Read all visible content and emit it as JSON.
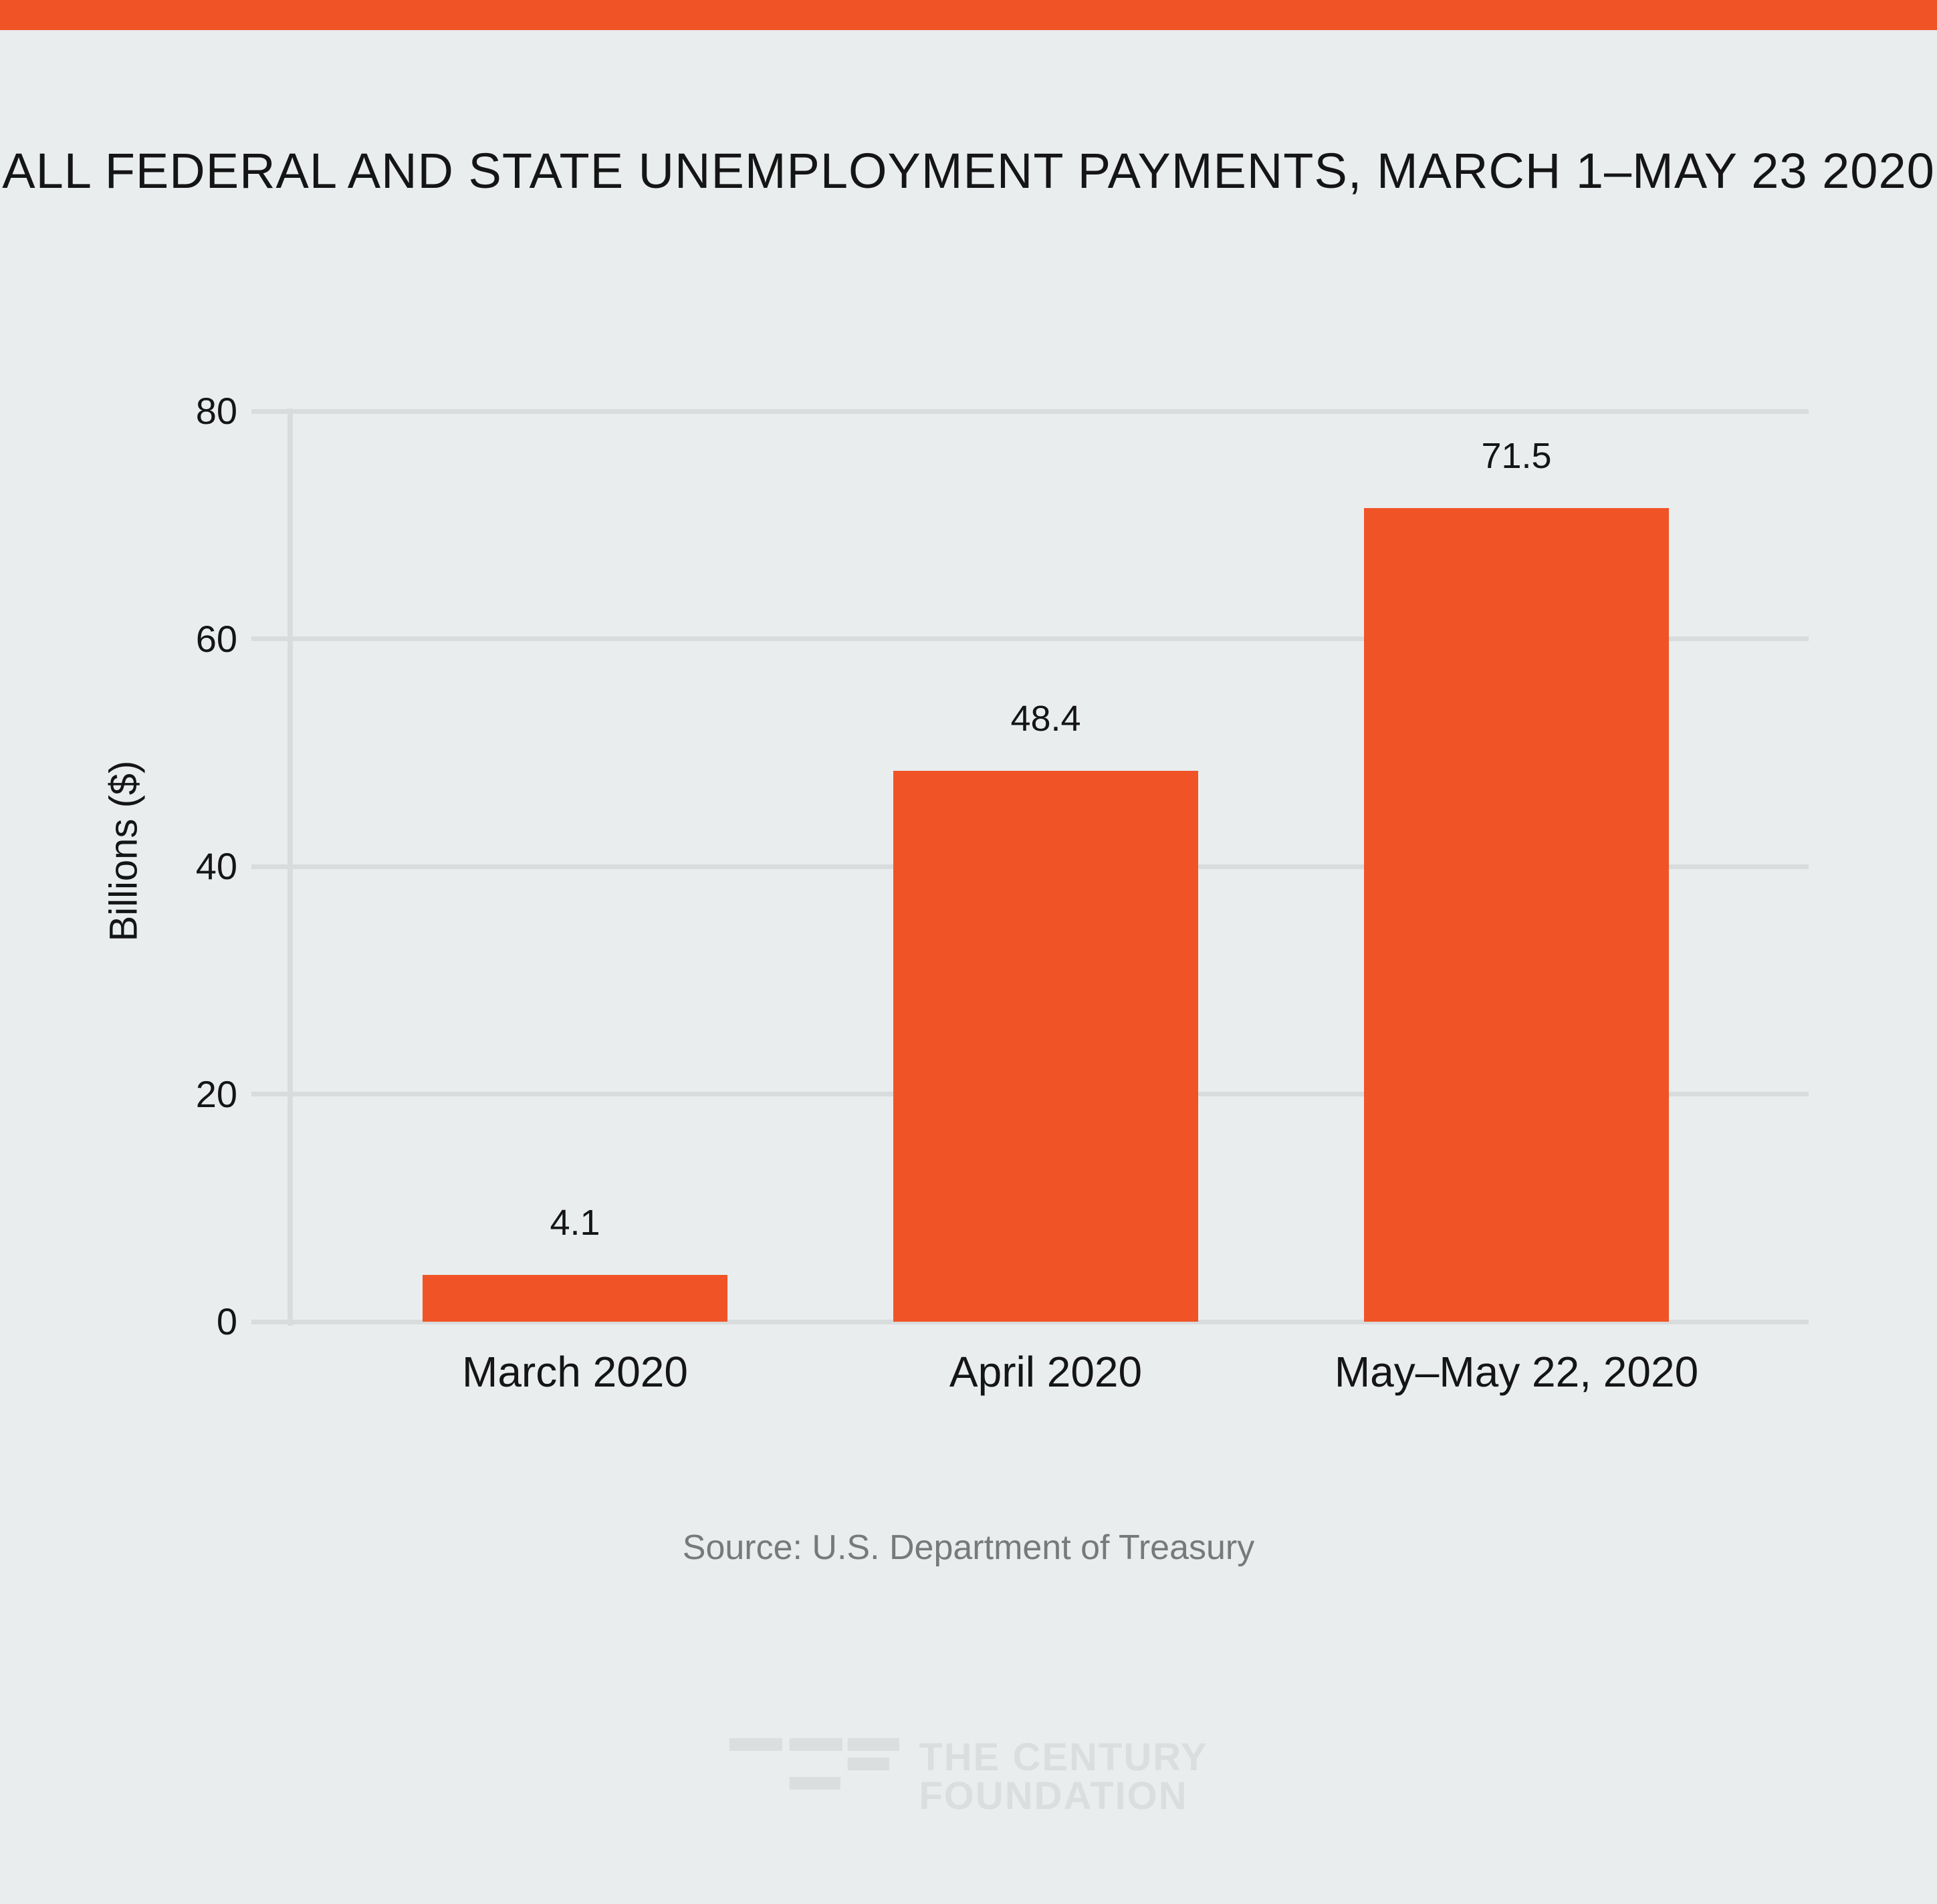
{
  "page": {
    "background_color": "#E9EDEE",
    "accent_color": "#F05426",
    "text_color": "#151515",
    "muted_text_color": "#77797B",
    "logo_color": "#DBDEDF",
    "title": "ALL FEDERAL AND STATE UNEMPLOYMENT PAYMENTS, MARCH 1–MAY 23 2020",
    "source": "Source: U.S. Department of Treasury"
  },
  "chart_data": {
    "type": "bar",
    "title": "ALL FEDERAL AND STATE UNEMPLOYMENT PAYMENTS, MARCH 1–MAY 23 2020",
    "categories": [
      "March 2020",
      "April 2020",
      "May–May 22, 2020"
    ],
    "values": [
      4.1,
      48.4,
      71.5
    ],
    "value_labels": [
      "4.1",
      "48.4",
      "71.5"
    ],
    "series_name": "All federal and state unemployment payments",
    "xlabel": "",
    "ylabel": "Billions ($)",
    "ylim": [
      0,
      80
    ],
    "yticks": [
      0,
      20,
      40,
      60,
      80
    ],
    "grid": true,
    "legend": "none",
    "bar_color": "#F05426",
    "grid_color": "#D9DCDD",
    "source": "Source: U.S. Department of Treasury"
  },
  "logo": {
    "line1": "THE CENTURY",
    "line2": "FOUNDATION"
  }
}
